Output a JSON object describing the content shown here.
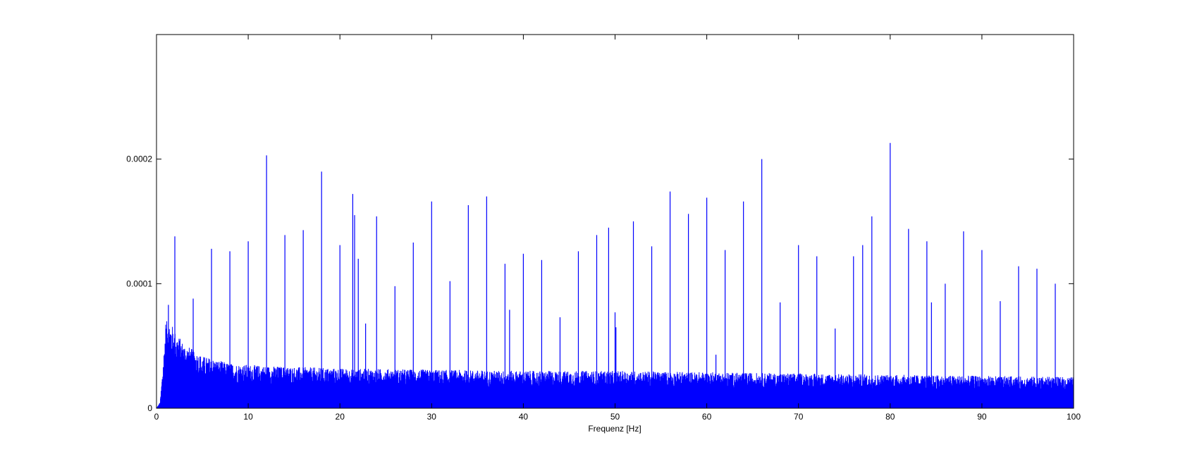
{
  "chart_data": {
    "type": "line",
    "title": "",
    "xlabel": "Frequenz [Hz]",
    "ylabel": "",
    "xlim": [
      0,
      100
    ],
    "ylim": [
      0,
      0.0003
    ],
    "x_ticks": [
      0,
      10,
      20,
      30,
      40,
      50,
      60,
      70,
      80,
      90,
      100
    ],
    "x_tick_labels": [
      "0",
      "10",
      "20",
      "30",
      "40",
      "50",
      "60",
      "70",
      "80",
      "90",
      "100"
    ],
    "y_ticks": [
      0,
      0.0001,
      0.0002
    ],
    "y_tick_labels": [
      "0",
      "0.0001",
      "0.0002"
    ],
    "grid": false,
    "legend": "none",
    "line_color": "#0000ff",
    "noise_floor": {
      "x": [
        0.4,
        0.8,
        1.0,
        1.5,
        2,
        3,
        5,
        8,
        12,
        20,
        30,
        40,
        50,
        60,
        70,
        80,
        90,
        100
      ],
      "y_max": [
        5e-06,
        4.5e-05,
        7e-05,
        7e-05,
        6.2e-05,
        5.2e-05,
        4.2e-05,
        3.6e-05,
        3.4e-05,
        3.2e-05,
        3.1e-05,
        3e-05,
        3e-05,
        2.9e-05,
        2.8e-05,
        2.7e-05,
        2.6e-05,
        2.5e-05
      ]
    },
    "peaks": {
      "x": [
        1.3,
        2,
        4,
        6,
        8,
        10,
        12,
        14,
        16,
        18,
        20,
        21.4,
        21.6,
        22,
        22.8,
        24,
        26,
        28,
        30,
        32,
        34,
        36,
        38,
        38.5,
        40,
        42,
        44,
        46,
        48,
        49.3,
        50,
        50.1,
        52,
        54,
        56,
        58,
        60,
        61,
        62,
        64,
        66,
        68,
        70,
        72,
        74,
        76,
        77,
        78,
        80,
        82,
        84,
        84.5,
        86,
        88,
        90,
        92,
        94,
        96,
        98
      ],
      "y": [
        8.3e-05,
        0.000138,
        8.8e-05,
        0.000128,
        0.000126,
        0.000134,
        0.000203,
        0.000139,
        0.000143,
        0.00019,
        0.000131,
        0.000172,
        0.000155,
        0.00012,
        6.8e-05,
        0.000154,
        9.8e-05,
        0.000133,
        0.000166,
        0.000102,
        0.000163,
        0.00017,
        0.000116,
        7.9e-05,
        0.000124,
        0.000119,
        7.3e-05,
        0.000126,
        0.000139,
        0.000145,
        7.7e-05,
        6.5e-05,
        0.00015,
        0.00013,
        0.000174,
        0.000156,
        0.000169,
        4.3e-05,
        0.000127,
        0.000166,
        0.0002,
        8.5e-05,
        0.000131,
        0.000122,
        6.4e-05,
        0.000122,
        0.000131,
        0.000154,
        0.000213,
        0.000144,
        0.000134,
        8.5e-05,
        0.0001,
        0.000142,
        0.000127,
        8.6e-05,
        0.000114,
        0.000112,
        0.0001
      ]
    }
  }
}
